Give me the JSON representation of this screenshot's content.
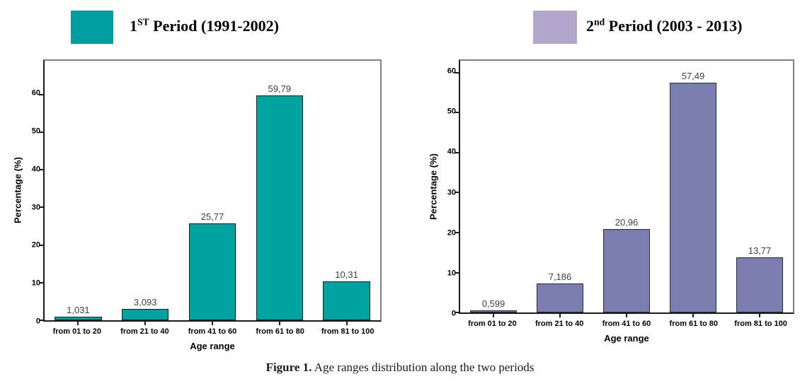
{
  "page": {
    "background": "#ffffff"
  },
  "legend": [
    {
      "num": "1",
      "ord": "ST",
      "rest": " Period (1991-2002)",
      "color": "#009C9E"
    },
    {
      "num": "2",
      "ord": "nd",
      "rest": " Period (2003 - 2013)",
      "color": "#B3A6CB"
    }
  ],
  "caption": {
    "label": "Figure 1.",
    "text": " Age ranges distribution along the two periods"
  },
  "chart_data": [
    {
      "type": "bar",
      "series_name": "1st Period (1991-2002)",
      "categories": [
        "from 01 to 20",
        "from 21 to 40",
        "from 41 to 60",
        "from 61 to 80",
        "from 81 to 100"
      ],
      "values": [
        1.031,
        3.093,
        25.77,
        59.79,
        10.31
      ],
      "value_labels": [
        "1,031",
        "3,093",
        "25,77",
        "59,79",
        "10,31"
      ],
      "xlabel": "Age range",
      "ylabel": "Percentage (%)",
      "yticks": [
        0,
        10,
        20,
        30,
        40,
        50,
        60
      ],
      "ylim": [
        0,
        69
      ],
      "grid": false,
      "legend_position": "top-left",
      "bar_color": "#00A3A0",
      "bar_border_color": "#1b1b1b"
    },
    {
      "type": "bar",
      "series_name": "2nd Period (2003 - 2013)",
      "categories": [
        "from 01 to 20",
        "from 21 to 40",
        "from 41 to 60",
        "from 61 to 80",
        "from 81 to 100"
      ],
      "values": [
        0.599,
        7.186,
        20.96,
        57.49,
        13.77
      ],
      "value_labels": [
        "0,599",
        "7,186",
        "20,96",
        "57,49",
        "13,77"
      ],
      "xlabel": "Age range",
      "ylabel": "Percentage (%)",
      "yticks": [
        0,
        10,
        20,
        30,
        40,
        50,
        60
      ],
      "ylim": [
        0,
        63
      ],
      "grid": false,
      "legend_position": "top-right",
      "bar_color": "#7A7EAE",
      "bar_border_color": "#2a2a3a"
    }
  ]
}
